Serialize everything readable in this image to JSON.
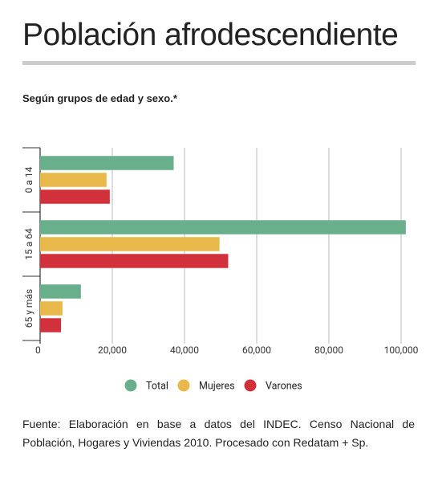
{
  "chart_data": {
    "type": "hbar",
    "title": "Población afrodescendiente",
    "subtitle": "Según grupos de edad y sexo.*",
    "categories": [
      "0 a 14",
      "15 a 64",
      "65 y más"
    ],
    "series": [
      {
        "name": "Total",
        "color": "#6aaf8b",
        "values": [
          37000,
          101300,
          11300
        ]
      },
      {
        "name": "Mujeres",
        "color": "#e8b84a",
        "values": [
          18400,
          49700,
          6200
        ]
      },
      {
        "name": "Varones",
        "color": "#d0313a",
        "values": [
          19300,
          52100,
          5800
        ]
      }
    ],
    "xlim": [
      0,
      103000
    ],
    "xticks": [
      0,
      {
        "value": 20000,
        "label": "20,000"
      },
      {
        "value": 40000,
        "label": "40,000"
      },
      {
        "value": 60000,
        "label": "60,000"
      },
      {
        "value": 80000,
        "label": "80,000"
      },
      {
        "value": 100000,
        "label": "100,000"
      }
    ],
    "grid": true,
    "legend": "bottom",
    "source": "Fuente: Elaboración en base a datos del INDEC. Censo Nacional de Población, Hogares y Viviendas 2010. Procesado con Redatam + Sp."
  }
}
